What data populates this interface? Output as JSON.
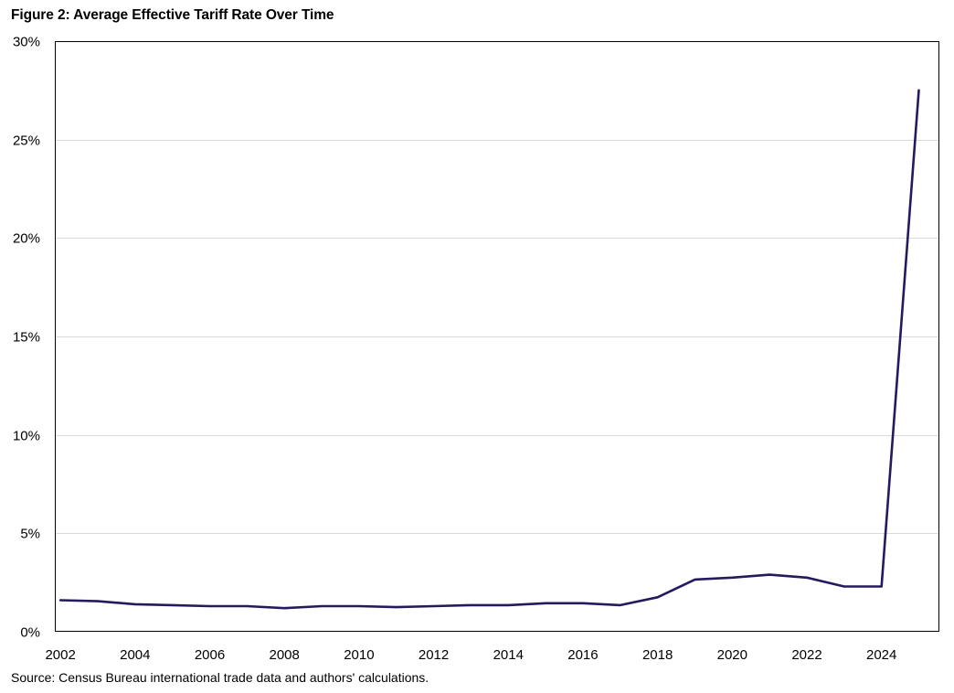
{
  "figure": {
    "title": "Figure 2: Average Effective Tariff Rate Over Time",
    "source": "Source: Census Bureau international trade data and authors' calculations."
  },
  "chart_data": {
    "type": "line",
    "title": "Figure 2: Average Effective Tariff Rate Over Time",
    "xlabel": "",
    "ylabel": "",
    "x": [
      2002,
      2003,
      2004,
      2005,
      2006,
      2007,
      2008,
      2009,
      2010,
      2011,
      2012,
      2013,
      2014,
      2015,
      2016,
      2017,
      2018,
      2019,
      2020,
      2021,
      2022,
      2023,
      2024,
      2025
    ],
    "series": [
      {
        "values": [
          1.6,
          1.55,
          1.4,
          1.35,
          1.3,
          1.3,
          1.2,
          1.3,
          1.3,
          1.25,
          1.3,
          1.35,
          1.35,
          1.45,
          1.45,
          1.35,
          1.75,
          2.65,
          2.75,
          2.9,
          2.75,
          2.3,
          2.3,
          27.5
        ],
        "color": "#251a5e"
      }
    ],
    "xlim": [
      2001.85,
      2025.55
    ],
    "ylim": [
      0,
      30
    ],
    "x_ticks": [
      "2002",
      "2004",
      "2006",
      "2008",
      "2010",
      "2012",
      "2014",
      "2016",
      "2018",
      "2020",
      "2022",
      "2024"
    ],
    "y_ticks": [
      "0%",
      "5%",
      "10%",
      "15%",
      "20%",
      "25%",
      "30%"
    ],
    "grid": true,
    "legend": "none"
  }
}
